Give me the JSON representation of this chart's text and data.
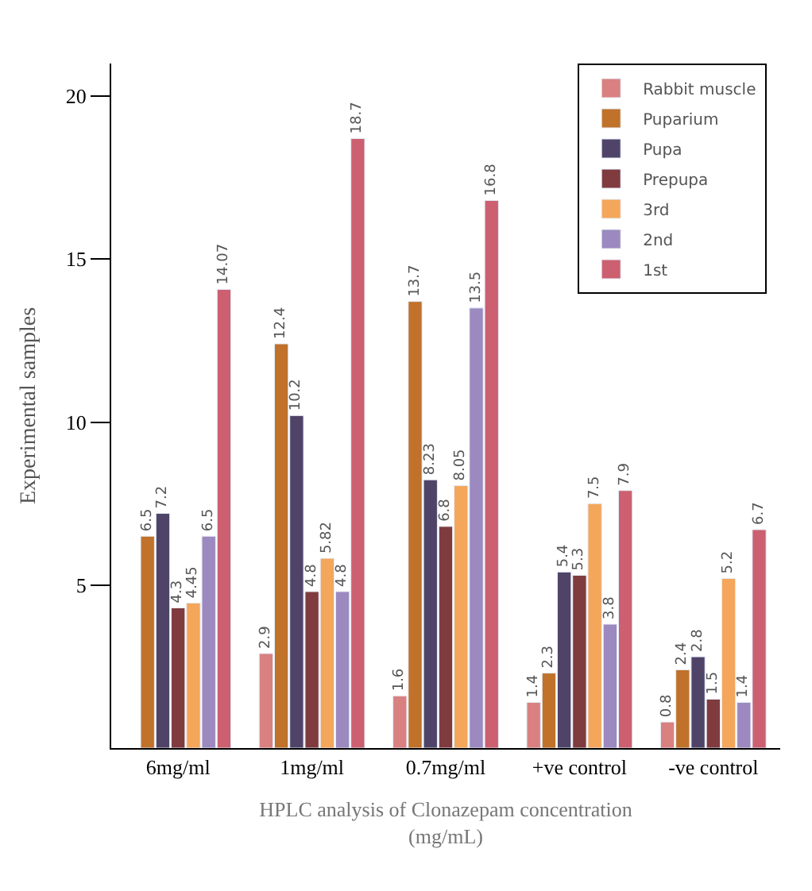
{
  "chart_data": {
    "type": "bar",
    "xlabel": "HPLC analysis of Clonazepam concentration\n(mg/mL)",
    "ylabel": "Experimental samples",
    "categories": [
      "6mg/ml",
      "1mg/ml",
      "0.7mg/ml",
      "+ve control",
      "-ve control"
    ],
    "series": [
      {
        "name": "Rabbit muscle",
        "color": "#d98080",
        "values": [
          null,
          2.9,
          1.6,
          1.4,
          0.8
        ]
      },
      {
        "name": "Puparium",
        "color": "#c0712a",
        "values": [
          6.5,
          12.4,
          13.7,
          2.3,
          2.4
        ]
      },
      {
        "name": "Pupa",
        "color": "#4f4468",
        "values": [
          7.2,
          10.2,
          8.23,
          5.4,
          2.8
        ]
      },
      {
        "name": "Prepupa",
        "color": "#7f3b3e",
        "values": [
          4.3,
          4.8,
          6.8,
          5.3,
          1.5
        ]
      },
      {
        "name": "3rd",
        "color": "#f4a65a",
        "values": [
          4.45,
          5.82,
          8.05,
          7.5,
          5.2
        ]
      },
      {
        "name": "2nd",
        "color": "#9b89bf",
        "values": [
          6.5,
          4.8,
          13.5,
          3.8,
          1.4
        ]
      },
      {
        "name": "1st",
        "color": "#cc6070",
        "values": [
          14.07,
          18.7,
          16.8,
          7.9,
          6.7
        ]
      }
    ],
    "ylim": [
      0,
      21
    ],
    "yticks": [
      5,
      10,
      15,
      20
    ],
    "legend": "top right",
    "data_labels": true
  }
}
